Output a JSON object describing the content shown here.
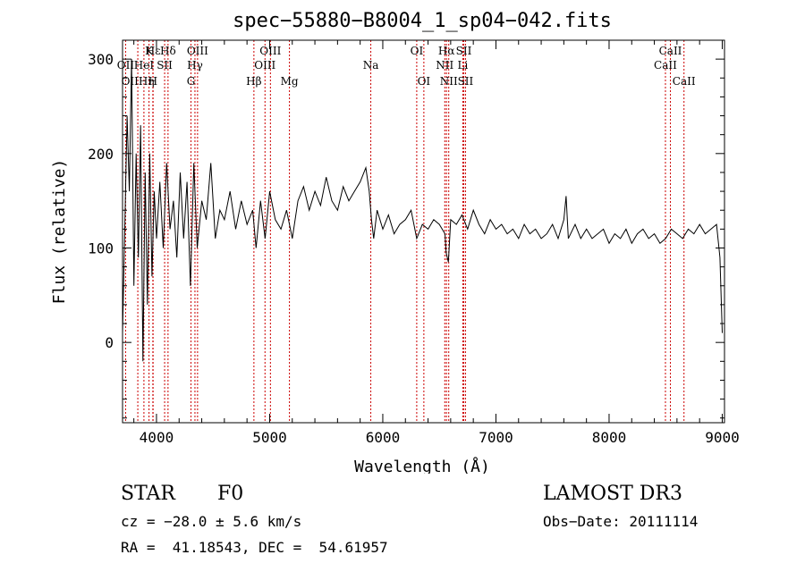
{
  "chart_data": {
    "type": "line",
    "title": "spec−55880−B8004_1_sp04−042.fits",
    "xlabel": "Wavelength (Å)",
    "ylabel": "Flux (relative)",
    "xlim": [
      3700,
      9020
    ],
    "ylim": [
      -85,
      320
    ],
    "x_ticks": [
      4000,
      5000,
      6000,
      7000,
      8000,
      9000
    ],
    "y_ticks": [
      0,
      100,
      200,
      300
    ],
    "grid": false,
    "series": [
      {
        "name": "spectrum",
        "x": [
          3700,
          3720,
          3740,
          3760,
          3780,
          3800,
          3820,
          3840,
          3860,
          3880,
          3900,
          3920,
          3940,
          3960,
          3980,
          4000,
          4030,
          4060,
          4090,
          4120,
          4150,
          4180,
          4210,
          4240,
          4270,
          4300,
          4330,
          4360,
          4400,
          4440,
          4480,
          4520,
          4560,
          4600,
          4650,
          4700,
          4750,
          4800,
          4850,
          4880,
          4920,
          4960,
          5000,
          5050,
          5100,
          5150,
          5200,
          5250,
          5300,
          5350,
          5400,
          5450,
          5500,
          5550,
          5600,
          5650,
          5700,
          5750,
          5800,
          5850,
          5880,
          5900,
          5920,
          5950,
          6000,
          6050,
          6100,
          6150,
          6200,
          6250,
          6300,
          6350,
          6400,
          6450,
          6500,
          6550,
          6560,
          6580,
          6600,
          6650,
          6700,
          6750,
          6800,
          6850,
          6900,
          6950,
          7000,
          7050,
          7100,
          7150,
          7200,
          7250,
          7300,
          7350,
          7400,
          7450,
          7500,
          7550,
          7600,
          7620,
          7640,
          7700,
          7750,
          7800,
          7850,
          7900,
          7950,
          8000,
          8050,
          8100,
          8150,
          8200,
          8250,
          8300,
          8350,
          8400,
          8450,
          8500,
          8550,
          8600,
          8650,
          8700,
          8750,
          8800,
          8850,
          8900,
          8950,
          8980,
          9000
        ],
        "values": [
          10,
          120,
          240,
          160,
          300,
          60,
          200,
          90,
          230,
          -20,
          180,
          40,
          200,
          70,
          160,
          110,
          170,
          100,
          190,
          120,
          150,
          90,
          180,
          110,
          170,
          60,
          190,
          100,
          150,
          130,
          190,
          110,
          140,
          130,
          160,
          120,
          150,
          125,
          140,
          100,
          150,
          110,
          160,
          130,
          120,
          140,
          110,
          150,
          165,
          140,
          160,
          145,
          175,
          150,
          140,
          165,
          150,
          160,
          170,
          185,
          160,
          130,
          110,
          140,
          120,
          135,
          115,
          125,
          130,
          140,
          110,
          125,
          120,
          130,
          125,
          115,
          95,
          85,
          130,
          125,
          135,
          120,
          140,
          125,
          115,
          130,
          120,
          125,
          115,
          120,
          110,
          125,
          115,
          120,
          110,
          115,
          125,
          110,
          130,
          155,
          110,
          125,
          110,
          120,
          110,
          115,
          120,
          105,
          115,
          110,
          120,
          105,
          115,
          120,
          110,
          115,
          105,
          110,
          120,
          115,
          110,
          120,
          115,
          125,
          115,
          120,
          125,
          90,
          10
        ]
      }
    ],
    "lines": [
      {
        "name": "CaII",
        "wavelength": 3934,
        "label": "K",
        "row": 0
      },
      {
        "name": "CaII",
        "wavelength": 3968,
        "label": "H",
        "row": 2
      },
      {
        "name": "Hepsilon",
        "wavelength": 3970,
        "label": "Hε",
        "row": 0
      },
      {
        "name": "Hdelta",
        "wavelength": 4102,
        "label": "Hδ",
        "row": 0
      },
      {
        "name": "Heta",
        "wavelength": 3835,
        "label": "OIIHη",
        "row": 2
      },
      {
        "name": "OII",
        "wavelength": 3727,
        "label": "OII",
        "row": 1
      },
      {
        "name": "HeI",
        "wavelength": 3889,
        "label": "HeI",
        "row": 1
      },
      {
        "name": "SII",
        "wavelength": 4072,
        "label": "SII",
        "row": 1
      },
      {
        "name": "OIII",
        "wavelength": 4363,
        "label": "OIII",
        "row": 0
      },
      {
        "name": "Hgamma",
        "wavelength": 4340,
        "label": "Hγ",
        "row": 1
      },
      {
        "name": "G",
        "wavelength": 4305,
        "label": "G",
        "row": 2
      },
      {
        "name": "Hbeta",
        "wavelength": 4861,
        "label": "Hβ",
        "row": 2
      },
      {
        "name": "OIII",
        "wavelength": 4959,
        "label": "OIII",
        "row": 1
      },
      {
        "name": "OIII",
        "wavelength": 5007,
        "label": "OIII",
        "row": 0
      },
      {
        "name": "Mg",
        "wavelength": 5175,
        "label": "Mg",
        "row": 2
      },
      {
        "name": "Na",
        "wavelength": 5894,
        "label": "Na",
        "row": 1
      },
      {
        "name": "OI",
        "wavelength": 6300,
        "label": "OI",
        "row": 0
      },
      {
        "name": "OI",
        "wavelength": 6363,
        "label": "OI",
        "row": 2
      },
      {
        "name": "NII",
        "wavelength": 6548,
        "label": "NII",
        "row": 1
      },
      {
        "name": "Halpha",
        "wavelength": 6563,
        "label": "Hα",
        "row": 0
      },
      {
        "name": "NII",
        "wavelength": 6583,
        "label": "NII",
        "row": 2
      },
      {
        "name": "Li",
        "wavelength": 6707,
        "label": "Li",
        "row": 1
      },
      {
        "name": "SII",
        "wavelength": 6716,
        "label": "SII",
        "row": 0
      },
      {
        "name": "SII",
        "wavelength": 6731,
        "label": "SII",
        "row": 2
      },
      {
        "name": "CaII",
        "wavelength": 8498,
        "label": "CaII",
        "row": 1
      },
      {
        "name": "CaII",
        "wavelength": 8542,
        "label": "CaII",
        "row": 0
      },
      {
        "name": "CaII",
        "wavelength": 8662,
        "label": "CaII",
        "row": 2
      }
    ]
  },
  "info": {
    "class_label": "STAR",
    "subclass_label": "F0",
    "survey": "LAMOST DR3",
    "cz": "cz = −28.0 ± 5.6 km/s",
    "obs_date": "Obs−Date: 20111114",
    "coords": "RA =  41.18543, DEC =  54.61957"
  },
  "colors": {
    "line_marker": "#cc0000",
    "spectrum": "#000000",
    "axis": "#000000"
  }
}
